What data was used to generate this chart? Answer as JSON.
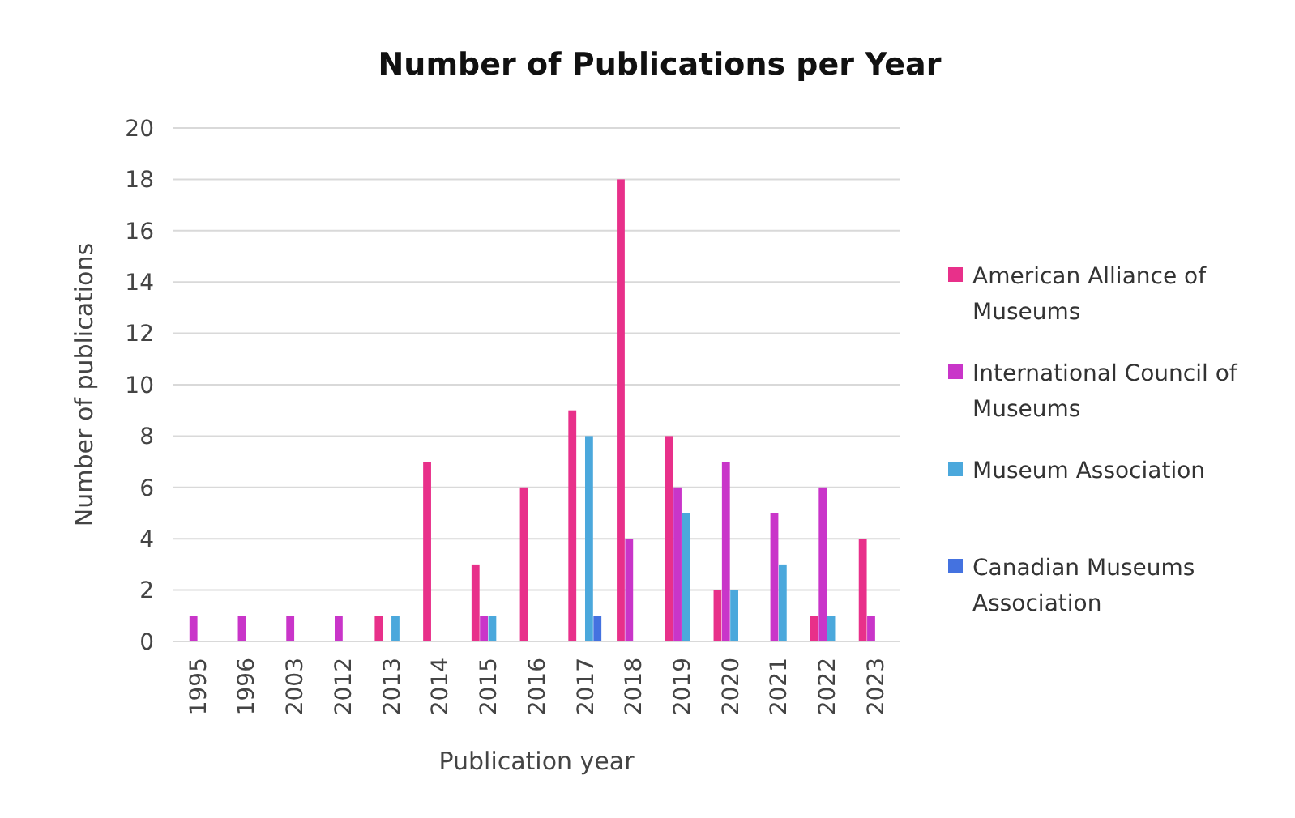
{
  "chart_data": {
    "type": "bar",
    "title": "Number of Publications per Year",
    "xlabel": "Publication year",
    "ylabel": "Number of publications",
    "categories": [
      "1995",
      "1996",
      "2003",
      "2012",
      "2013",
      "2014",
      "2015",
      "2016",
      "2017",
      "2018",
      "2019",
      "2020",
      "2021",
      "2022",
      "2023"
    ],
    "series": [
      {
        "name": "American Alliance of Museums",
        "color": "#e8308a",
        "values": [
          null,
          null,
          null,
          null,
          1,
          7,
          3,
          6,
          9,
          18,
          8,
          2,
          null,
          1,
          4
        ]
      },
      {
        "name": "International Council of Museums",
        "color": "#c935c9",
        "values": [
          1,
          1,
          1,
          1,
          null,
          null,
          1,
          null,
          null,
          4,
          6,
          7,
          5,
          6,
          1
        ]
      },
      {
        "name": "Museum Association",
        "color": "#4ba8dc",
        "values": [
          null,
          null,
          null,
          null,
          1,
          null,
          1,
          null,
          8,
          null,
          5,
          2,
          3,
          1,
          null
        ]
      },
      {
        "name": "Canadian Museums Association",
        "color": "#4472e0",
        "values": [
          null,
          null,
          null,
          null,
          null,
          null,
          null,
          null,
          1,
          null,
          null,
          null,
          null,
          null,
          null
        ]
      }
    ],
    "ylim": [
      0,
      20
    ],
    "yticks": [
      0,
      2,
      4,
      6,
      8,
      10,
      12,
      14,
      16,
      18,
      20
    ],
    "grid": "y",
    "legend": "right"
  }
}
